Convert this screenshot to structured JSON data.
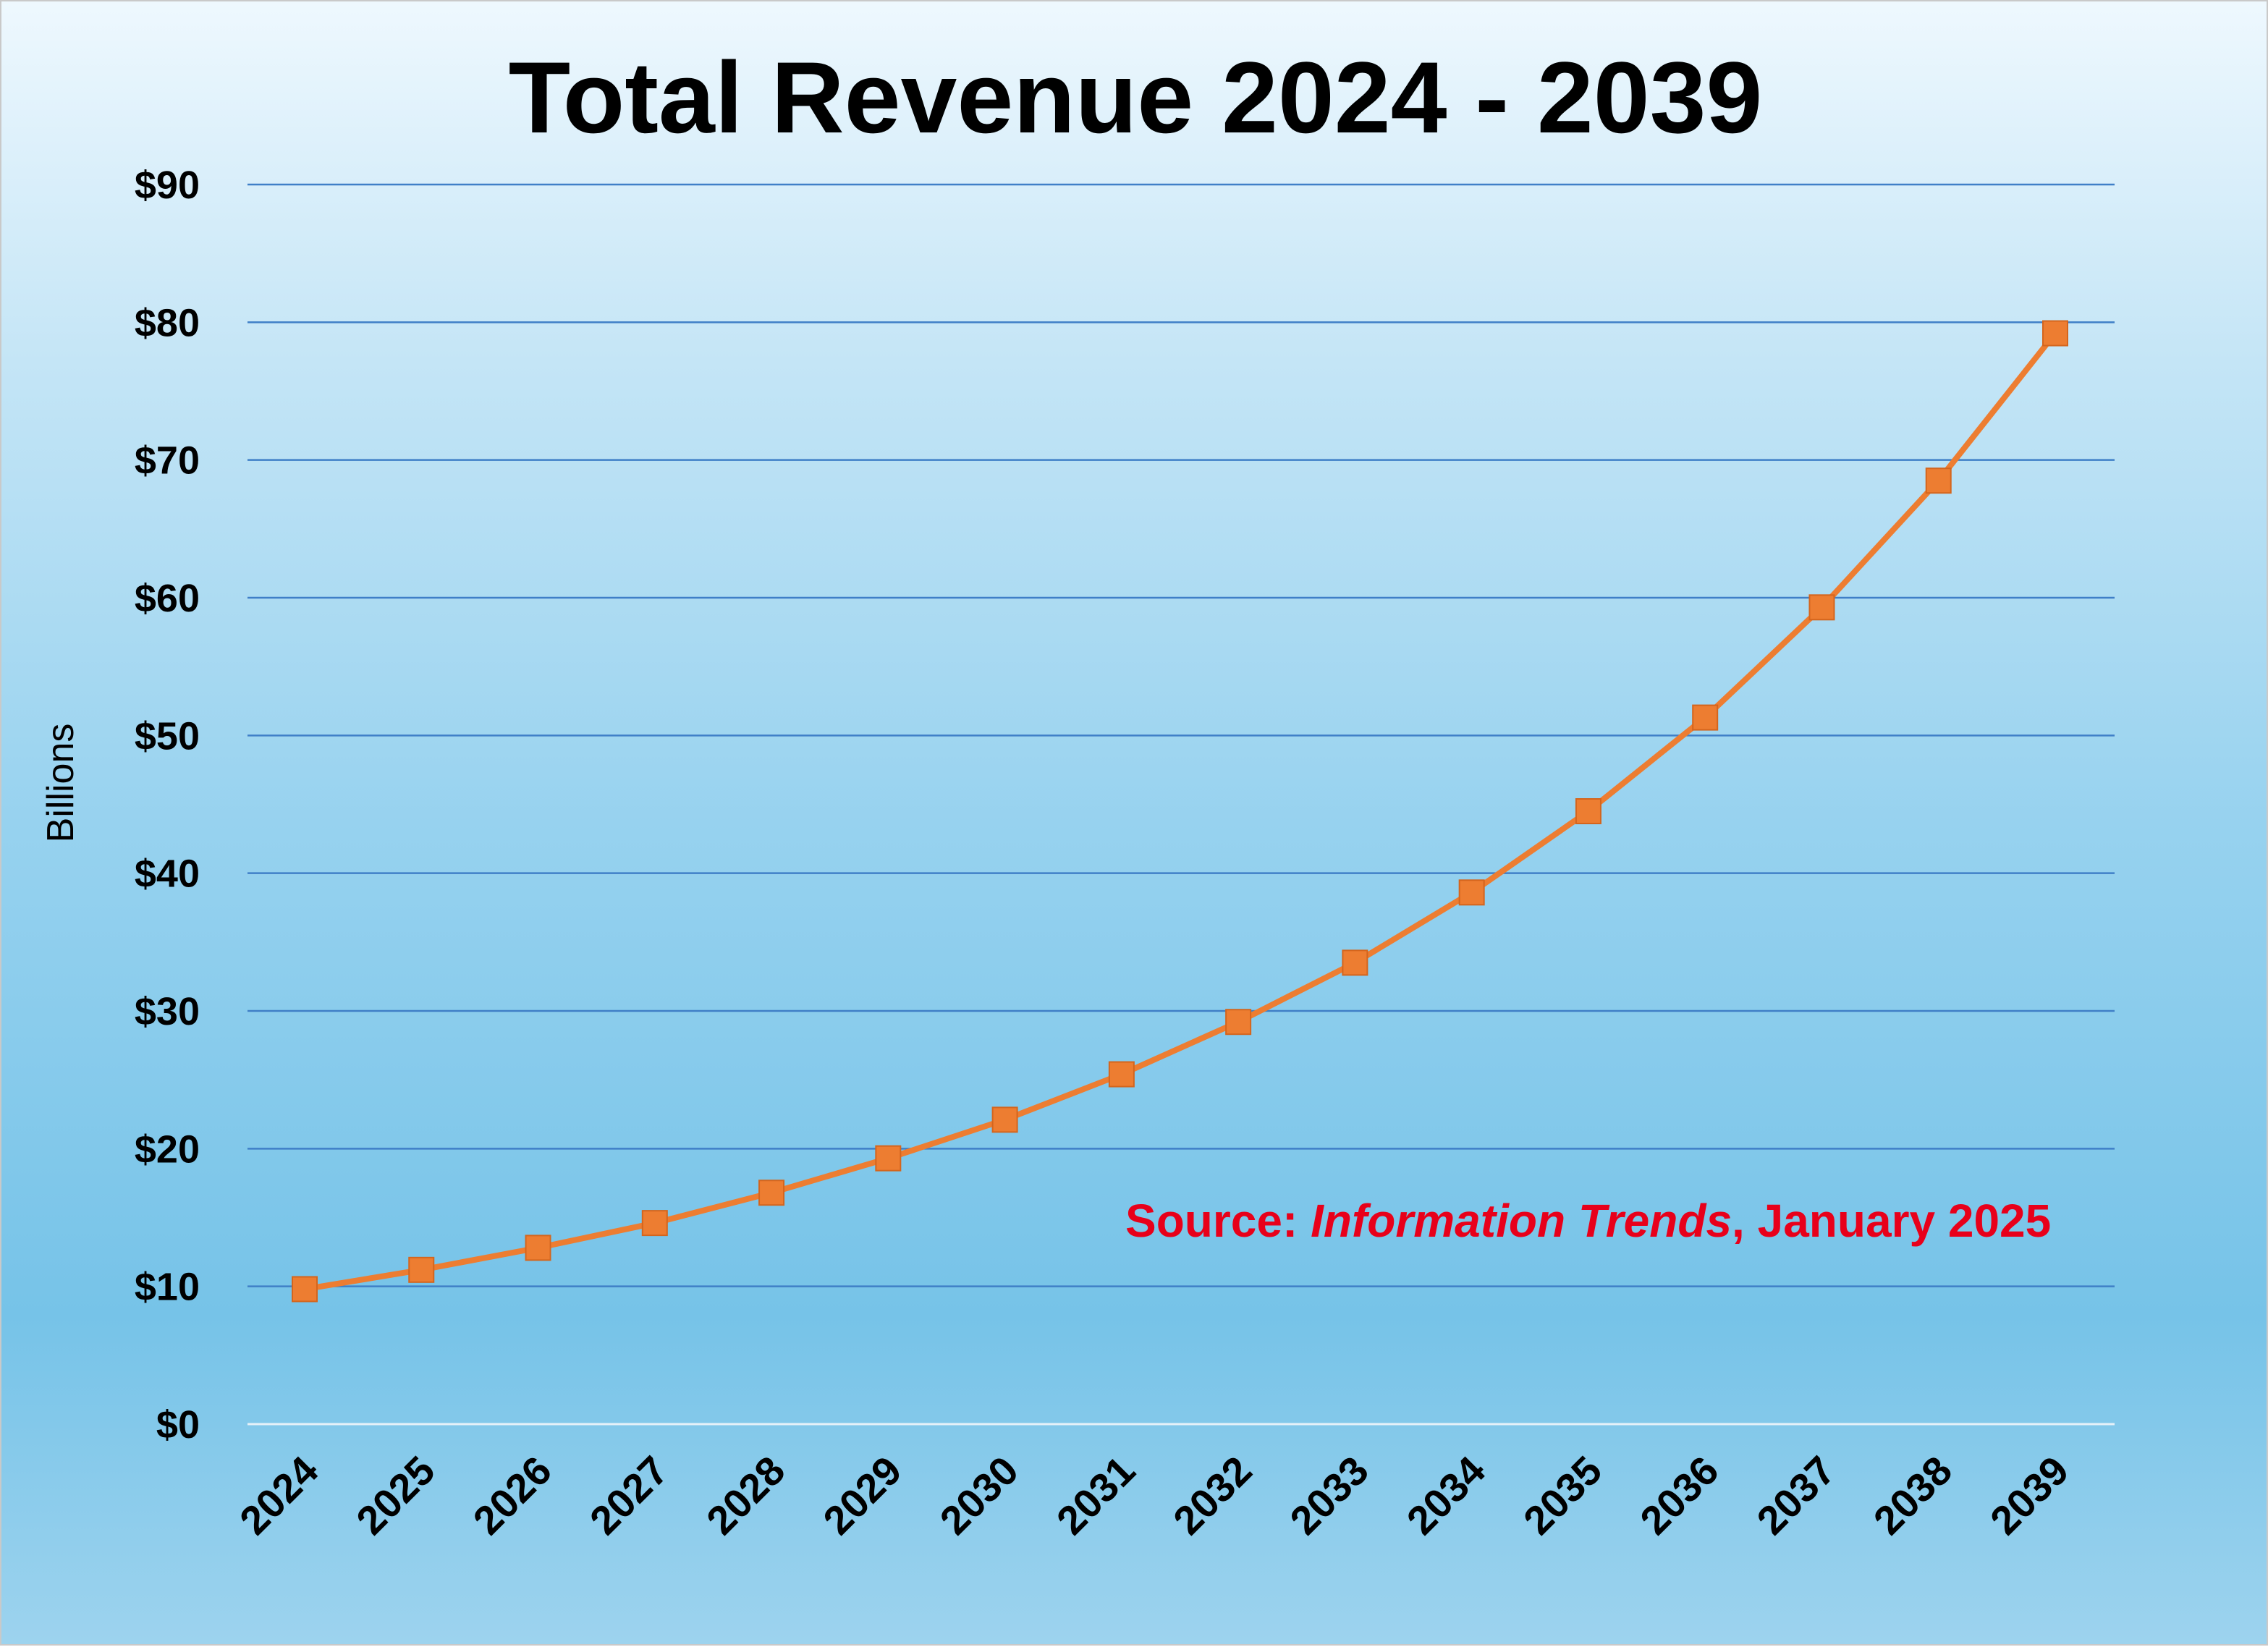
{
  "chart_data": {
    "type": "line",
    "title": "Total Revenue 2024 - 2039",
    "ylabel": "Billions",
    "xlabel": "",
    "categories": [
      "2024",
      "2025",
      "2026",
      "2027",
      "2028",
      "2029",
      "2030",
      "2031",
      "2032",
      "2033",
      "2034",
      "2035",
      "2036",
      "2037",
      "2038",
      "2039"
    ],
    "series": [
      {
        "values": [
          9.8,
          11.2,
          12.8,
          14.6,
          16.8,
          19.3,
          22.1,
          25.4,
          29.2,
          33.5,
          38.6,
          44.5,
          51.3,
          59.3,
          68.5,
          79.2
        ],
        "color": "#ed7d31",
        "marker": "square"
      }
    ],
    "ylim": [
      0,
      90
    ],
    "yticks": [
      0,
      10,
      20,
      30,
      40,
      50,
      60,
      70,
      80,
      90
    ],
    "ytick_labels": [
      "$0",
      "$10",
      "$20",
      "$30",
      "$40",
      "$50",
      "$60",
      "$70",
      "$80",
      "$90"
    ],
    "grid": true,
    "gridline_color": "#3f7fc7",
    "annotation": {
      "prefix": "Source: ",
      "italic": "Information Trends",
      "suffix": ", January 2025",
      "color": "#e8001a"
    }
  }
}
